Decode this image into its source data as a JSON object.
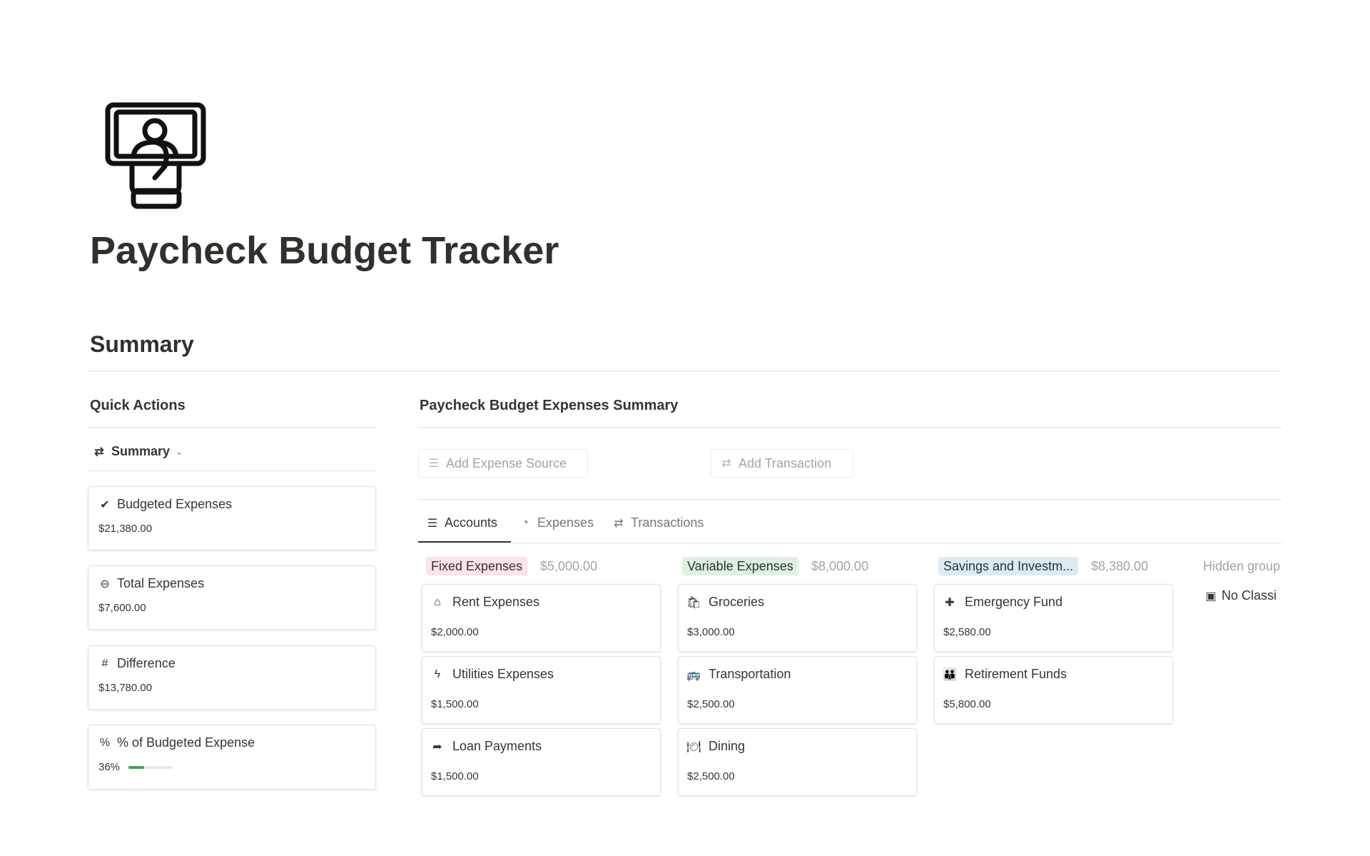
{
  "page": {
    "title": "Paycheck Budget Tracker",
    "icon": "money-hand-icon"
  },
  "summary_heading": "Summary",
  "quick_actions": {
    "title": "Quick Actions",
    "view": {
      "label": "Summary",
      "icon": "arrows-exchange-icon"
    },
    "cards": [
      {
        "label": "Budgeted Expenses",
        "value": "$21,380.00",
        "icon": "check-circle-icon"
      },
      {
        "label": "Total Expenses",
        "value": "$7,600.00",
        "icon": "minus-circle-icon"
      },
      {
        "label": "Difference",
        "value": "$13,780.00",
        "icon": "hash-icon"
      },
      {
        "label": "% of Budgeted Expense",
        "value": "36%",
        "icon": "percent-circle-icon",
        "progress": 36
      }
    ]
  },
  "expenses_summary": {
    "title": "Paycheck Budget Expenses Summary",
    "buttons": [
      {
        "label": "Add Expense Source",
        "icon": "database-icon"
      },
      {
        "label": "Add Transaction",
        "icon": "arrows-exchange-icon"
      }
    ],
    "tabs": [
      {
        "label": "Accounts",
        "icon": "database-icon",
        "active": true
      },
      {
        "label": "Expenses",
        "icon": "pie-chart-icon"
      },
      {
        "label": "Transactions",
        "icon": "arrows-exchange-icon"
      }
    ],
    "groups": [
      {
        "label": "Fixed Expenses",
        "total": "$5,000.00",
        "color": "#f9e4ec",
        "text_color": "#4c2337",
        "items": [
          {
            "name": "Rent Expenses",
            "amount": "$2,000.00",
            "icon": "home-icon"
          },
          {
            "name": "Utilities Expenses",
            "amount": "$1,500.00",
            "icon": "bolt-icon"
          },
          {
            "name": "Loan Payments",
            "amount": "$1,500.00",
            "icon": "share-arrow-icon"
          }
        ]
      },
      {
        "label": "Variable Expenses",
        "total": "$8,000.00",
        "color": "#e0efe2",
        "text_color": "#1c3829",
        "items": [
          {
            "name": "Groceries",
            "amount": "$3,000.00",
            "icon": "grocery-icon"
          },
          {
            "name": "Transportation",
            "amount": "$2,500.00",
            "icon": "bus-icon"
          },
          {
            "name": "Dining",
            "amount": "$2,500.00",
            "icon": "dining-icon"
          }
        ]
      },
      {
        "label": "Savings and Investm...",
        "total": "$8,380.00",
        "color": "#ddebf1",
        "text_color": "#183347",
        "items": [
          {
            "name": "Emergency Fund",
            "amount": "$2,580.00",
            "icon": "plus-icon"
          },
          {
            "name": "Retirement Funds",
            "amount": "$5,800.00",
            "icon": "people-icon"
          }
        ]
      }
    ],
    "hidden_groups": {
      "label": "Hidden group",
      "item": "No Classi",
      "icon": "inbox-icon"
    }
  }
}
